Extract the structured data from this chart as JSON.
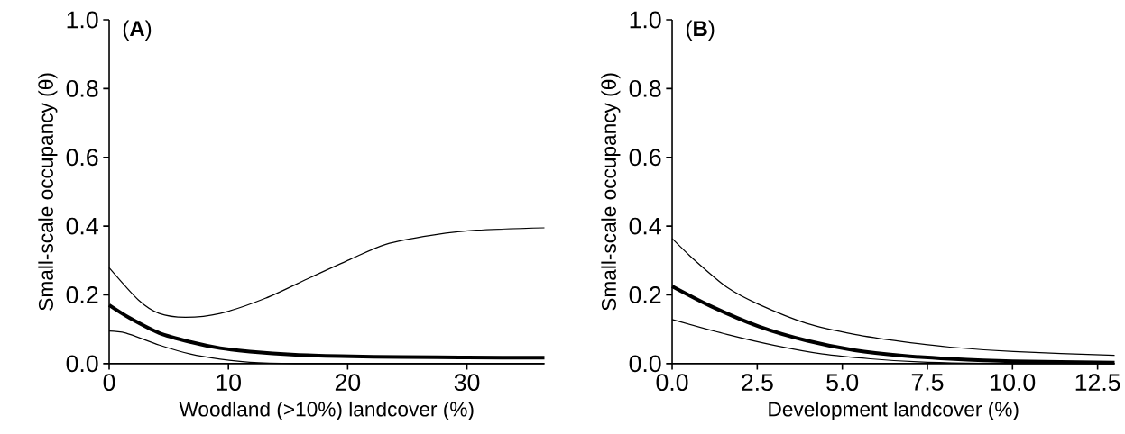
{
  "chart_data": [
    {
      "type": "line",
      "title": "(**A**)",
      "xlabel": "Woodland (>10%) landcover (%)",
      "ylabel": "Small-scale occupancy (θ)",
      "xlim": [
        0,
        36.5
      ],
      "ylim": [
        0,
        1
      ],
      "xticks": [
        0,
        10,
        20,
        30
      ],
      "yticks": [
        {
          "value": 0,
          "label": "0.0"
        },
        {
          "value": 0.2,
          "label": "0.2"
        },
        {
          "value": 0.4,
          "label": "0.4"
        },
        {
          "value": 0.6,
          "label": "0.6"
        },
        {
          "value": 0.8,
          "label": "0.8"
        },
        {
          "value": 1,
          "label": "1.0"
        }
      ],
      "grid": false,
      "line_style": "solid",
      "marker": "none",
      "series": [
        {
          "color": "#000000",
          "x": [
            0,
            1.4,
            4.2,
            6.8,
            9.3,
            11.8,
            15.6,
            20,
            25,
            30,
            36.5
          ],
          "values": [
            0.095,
            0.089,
            0.054,
            0.028,
            0.013,
            0.004,
            0,
            0,
            0,
            0,
            0
          ]
        },
        {
          "color": "#000000",
          "x": [
            0,
            1.7,
            4.2,
            6.8,
            9.3,
            11.8,
            15.6,
            19.4,
            24.5,
            30,
            36.5
          ],
          "values": [
            0.17,
            0.133,
            0.089,
            0.063,
            0.045,
            0.035,
            0.026,
            0.022,
            0.019,
            0.018,
            0.017
          ]
        },
        {
          "color": "#000000",
          "x": [
            0,
            2.46,
            4.2,
            6.4,
            9.3,
            13.1,
            16.9,
            20.2,
            23.2,
            27,
            30.8,
            36.5
          ],
          "values": [
            0.279,
            0.185,
            0.146,
            0.135,
            0.146,
            0.19,
            0.251,
            0.303,
            0.347,
            0.373,
            0.388,
            0.395
          ]
        }
      ]
    },
    {
      "type": "line",
      "title": "(**B**)",
      "xlabel": "Development landcover (%)",
      "ylabel": "Small-scale occupancy (θ)",
      "xlim": [
        0,
        13
      ],
      "ylim": [
        0,
        1
      ],
      "xticks": [
        {
          "value": 0,
          "label": "0.0"
        },
        2.5,
        {
          "value": 5,
          "label": "5.0"
        },
        7.5,
        {
          "value": 10,
          "label": "10.0"
        },
        12.5
      ],
      "yticks": [
        {
          "value": 0,
          "label": "0.0"
        },
        {
          "value": 0.2,
          "label": "0.2"
        },
        {
          "value": 0.4,
          "label": "0.4"
        },
        {
          "value": 0.6,
          "label": "0.6"
        },
        {
          "value": 0.8,
          "label": "0.8"
        },
        {
          "value": 1,
          "label": "1.0"
        }
      ],
      "grid": false,
      "line_style": "solid",
      "marker": "none",
      "series": [
        {
          "color": "#000000",
          "x": [
            0,
            1.61,
            3.01,
            4.42,
            5.82,
            7.23,
            8.63,
            10,
            13
          ],
          "values": [
            0.128,
            0.085,
            0.053,
            0.028,
            0.014,
            0.005,
            0.001,
            0,
            0
          ]
        },
        {
          "color": "#000000",
          "x": [
            0,
            1.14,
            2.55,
            3.95,
            5.36,
            6.76,
            8.16,
            10,
            13
          ],
          "values": [
            0.225,
            0.167,
            0.108,
            0.067,
            0.039,
            0.023,
            0.014,
            0.007,
            0.003
          ]
        },
        {
          "color": "#000000",
          "x": [
            0,
            0.67,
            1.61,
            2.55,
            3.95,
            5.36,
            6.76,
            8.16,
            10.03,
            13
          ],
          "values": [
            0.364,
            0.3,
            0.222,
            0.172,
            0.117,
            0.085,
            0.064,
            0.048,
            0.035,
            0.024
          ]
        }
      ]
    }
  ]
}
